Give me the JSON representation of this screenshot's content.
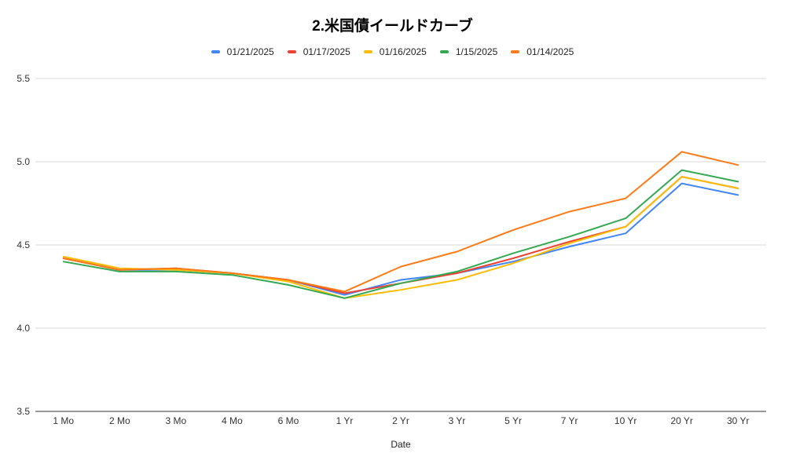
{
  "chart_data": {
    "type": "line",
    "title": "2.米国債イールドカーブ",
    "xlabel": "Date",
    "ylabel": "",
    "categories": [
      "1 Mo",
      "2 Mo",
      "3 Mo",
      "4 Mo",
      "6 Mo",
      "1 Yr",
      "2 Yr",
      "3 Yr",
      "5 Yr",
      "7 Yr",
      "10 Yr",
      "20 Yr",
      "30 Yr"
    ],
    "ylim": [
      3.5,
      5.5
    ],
    "yticks": [
      "3.5",
      "4.0",
      "4.5",
      "5.0",
      "5.5"
    ],
    "grid": true,
    "legend_position": "top",
    "series": [
      {
        "name": "01/21/2025",
        "color": "#4285f4",
        "values": [
          4.42,
          4.35,
          4.35,
          4.33,
          4.29,
          4.2,
          4.29,
          4.33,
          4.4,
          4.49,
          4.57,
          4.87,
          4.8
        ]
      },
      {
        "name": "01/17/2025",
        "color": "#ea4335",
        "values": [
          4.42,
          4.35,
          4.36,
          4.33,
          4.29,
          4.21,
          4.27,
          4.33,
          4.42,
          4.52,
          4.61,
          4.91,
          4.84
        ]
      },
      {
        "name": "01/16/2025",
        "color": "#fbbc04",
        "values": [
          4.43,
          4.36,
          4.35,
          4.33,
          4.28,
          4.18,
          4.23,
          4.29,
          4.39,
          4.51,
          4.61,
          4.91,
          4.84
        ]
      },
      {
        "name": "1/15/2025",
        "color": "#34a853",
        "values": [
          4.4,
          4.34,
          4.34,
          4.32,
          4.26,
          4.18,
          4.27,
          4.34,
          4.45,
          4.55,
          4.66,
          4.95,
          4.88
        ]
      },
      {
        "name": "01/14/2025",
        "color": "#fa7b17",
        "values": [
          4.42,
          4.35,
          4.36,
          4.33,
          4.29,
          4.22,
          4.37,
          4.46,
          4.59,
          4.7,
          4.78,
          5.06,
          4.98
        ]
      }
    ]
  }
}
